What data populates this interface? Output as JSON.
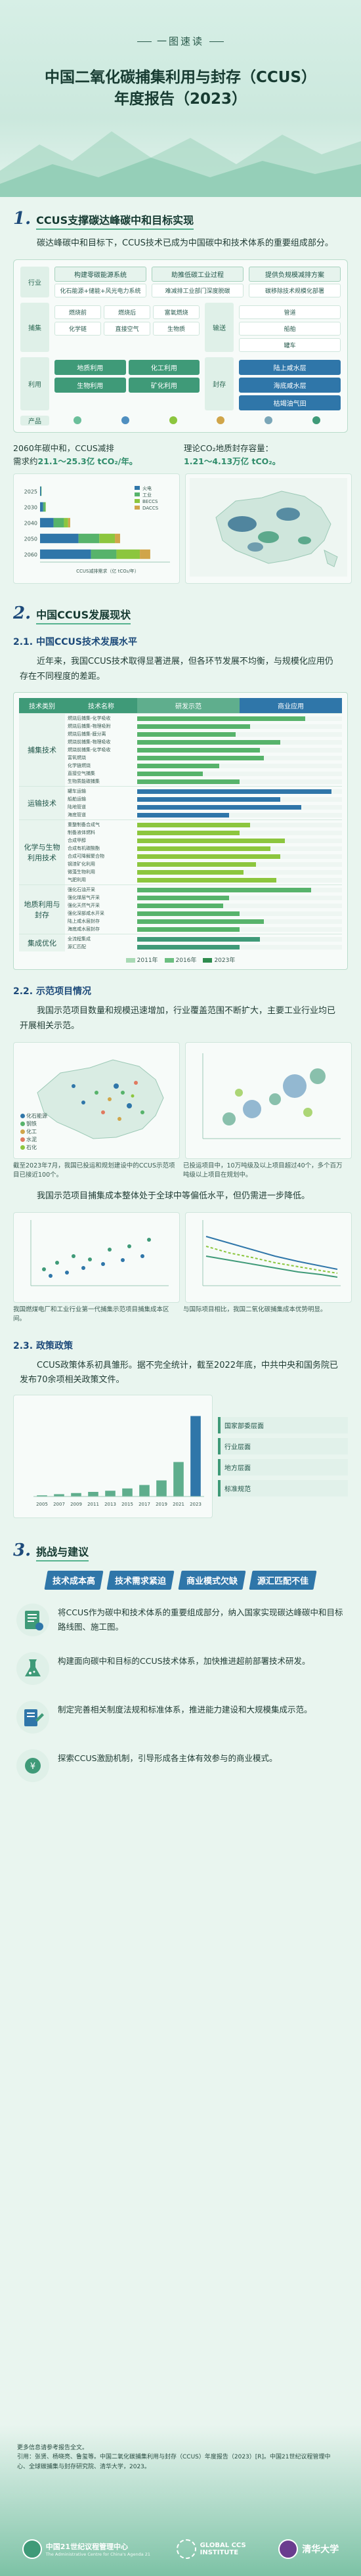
{
  "header": {
    "tag": "一图速读",
    "title_line1": "中国二氧化碳捕集利用与封存（CCUS）",
    "title_line2": "年度报告（2023）"
  },
  "section1": {
    "num": "1.",
    "title": "CCUS支撑碳达峰碳中和目标实现",
    "intro": "碳达峰碳中和目标下，CCUS技术已成为中国碳中和技术体系的重要组成部分。",
    "chain": {
      "top_labels": [
        "构建零碳能源系统",
        "助推低碳工业过程",
        "提供负规模减排方案"
      ],
      "top_sub": [
        "化石能源+储能+风光电力系统",
        "难减排工业部门深度脱碳",
        "碳移除技术规模化部署"
      ],
      "stage_labels": [
        "捕集",
        "输送",
        "利用",
        "封存"
      ],
      "capture_items": [
        "燃烧前",
        "燃烧后",
        "富氧燃烧",
        "化学链",
        "直接空气",
        "生物质"
      ],
      "transport_items": [
        "管道",
        "船舶",
        "罐车"
      ],
      "utilize_items": [
        "地质利用",
        "化工利用",
        "生物利用",
        "矿化利用"
      ],
      "storage_items": [
        "陆上咸水层",
        "海底咸水层",
        "枯竭油气田"
      ],
      "product_label": "产品",
      "row_label_sector": "行业"
    },
    "stat_left": {
      "text_a": "2060年碳中和，CCUS减排",
      "text_b": "需求约",
      "value": "21.1～25.3亿 tCO₂/年。"
    },
    "stat_right": {
      "text_a": "理论CO₂地质封存容量：",
      "value": "1.21～4.13万亿 tCO₂。"
    }
  },
  "chart_data": [
    {
      "type": "bar",
      "title": "",
      "categories": [
        "2025",
        "2030",
        "2040",
        "2050",
        "2060"
      ],
      "series": [
        {
          "name": "火电",
          "values": [
            0.19,
            0.6,
            2.6,
            7.4,
            9.8
          ]
        },
        {
          "name": "工业",
          "values": [
            0.09,
            0.4,
            2.0,
            4.0,
            4.9
          ]
        },
        {
          "name": "BECCS",
          "values": [
            0.01,
            0.1,
            0.8,
            3.0,
            4.5
          ]
        },
        {
          "name": "DACCS",
          "values": [
            0.0,
            0.0,
            0.4,
            1.0,
            2.0
          ]
        }
      ],
      "ylabel": "年份",
      "xlabel": "CCUS减排需求（亿 tCO₂/年）",
      "xlim": [
        0,
        25
      ]
    },
    {
      "type": "bar",
      "title": "",
      "categories": [
        "2005",
        "2007",
        "2009",
        "2011",
        "2013",
        "2015",
        "2017",
        "2019",
        "2021",
        "2023"
      ],
      "values": [
        1,
        2,
        3,
        4,
        5,
        7,
        10,
        14,
        30,
        70
      ],
      "ylabel": "政策数量",
      "ylim": [
        0,
        80
      ]
    }
  ],
  "section2": {
    "num": "2.",
    "title": "中国CCUS发展现状",
    "sub1_num": "2.1.",
    "sub1_title": "中国CCUS技术发展水平",
    "sub1_text": "近年来，我国CCUS技术取得显著进展，但各环节发展不均衡，与规模化应用仍存在不同程度的差距。",
    "tech_header": [
      "技术类别",
      "技术名称",
      "研发示范",
      "商业应用"
    ],
    "tech_groups": [
      {
        "cat": "捕集技术",
        "rows": [
          {
            "name": "燃烧后捕集-化学吸收",
            "level": 0.82,
            "color": "#57b36b"
          },
          {
            "name": "燃烧后捕集-物理吸附",
            "level": 0.55,
            "color": "#57b36b"
          },
          {
            "name": "燃烧后捕集-膜分离",
            "level": 0.48,
            "color": "#57b36b"
          },
          {
            "name": "燃烧前捕集-物理吸收",
            "level": 0.7,
            "color": "#57b36b"
          },
          {
            "name": "燃烧前捕集-化学吸收",
            "level": 0.6,
            "color": "#57b36b"
          },
          {
            "name": "富氧燃烧",
            "level": 0.62,
            "color": "#57b36b"
          },
          {
            "name": "化学链燃烧",
            "level": 0.4,
            "color": "#57b36b"
          },
          {
            "name": "直接空气捕集",
            "level": 0.32,
            "color": "#57b36b"
          },
          {
            "name": "生物质能碳捕集",
            "level": 0.5,
            "color": "#57b36b"
          }
        ]
      },
      {
        "cat": "运输技术",
        "rows": [
          {
            "name": "罐车运输",
            "level": 0.95,
            "color": "#2f76a9"
          },
          {
            "name": "船舶运输",
            "level": 0.7,
            "color": "#2f76a9"
          },
          {
            "name": "陆地管道",
            "level": 0.8,
            "color": "#2f76a9"
          },
          {
            "name": "海底管道",
            "level": 0.45,
            "color": "#2f76a9"
          }
        ]
      },
      {
        "cat": "化学与生物利用技术",
        "rows": [
          {
            "name": "重整制备合成气",
            "level": 0.55,
            "color": "#8cc63e"
          },
          {
            "name": "制备液体燃料",
            "level": 0.5,
            "color": "#8cc63e"
          },
          {
            "name": "合成甲醇",
            "level": 0.72,
            "color": "#8cc63e"
          },
          {
            "name": "合成有机碳酸酯",
            "level": 0.65,
            "color": "#8cc63e"
          },
          {
            "name": "合成可降解聚合物",
            "level": 0.7,
            "color": "#8cc63e"
          },
          {
            "name": "钢渣矿化利用",
            "level": 0.58,
            "color": "#8cc63e"
          },
          {
            "name": "微藻生物利用",
            "level": 0.52,
            "color": "#8cc63e"
          },
          {
            "name": "气肥利用",
            "level": 0.68,
            "color": "#8cc63e"
          }
        ]
      },
      {
        "cat": "地质利用与封存",
        "rows": [
          {
            "name": "强化石油开采",
            "level": 0.85,
            "color": "#57b36b"
          },
          {
            "name": "强化煤层气开采",
            "level": 0.45,
            "color": "#57b36b"
          },
          {
            "name": "强化天然气开采",
            "level": 0.42,
            "color": "#57b36b"
          },
          {
            "name": "强化深部咸水开采",
            "level": 0.5,
            "color": "#57b36b"
          },
          {
            "name": "陆上咸水层封存",
            "level": 0.62,
            "color": "#57b36b"
          },
          {
            "name": "海底咸水层封存",
            "level": 0.5,
            "color": "#57b36b"
          }
        ]
      },
      {
        "cat": "集成优化",
        "rows": [
          {
            "name": "全流程集成",
            "level": 0.6,
            "color": "#3f9a78"
          },
          {
            "name": "源汇匹配",
            "level": 0.5,
            "color": "#3f9a78"
          }
        ]
      }
    ],
    "tech_legend": [
      "2011年",
      "2016年",
      "2023年"
    ],
    "sub2_num": "2.2.",
    "sub2_title": "示范项目情况",
    "sub2_text": "我国示范项目数量和规模迅速增加，行业覆盖范围不断扩大，主要工业行业均已开展相关示范。",
    "map_legend": [
      "化石能源",
      "钢铁",
      "化工",
      "水泥",
      "石化"
    ],
    "map_caption_left": "截至2023年7月，我国已投运和规划建设中的CCUS示范项目已接近100个。",
    "map_caption_right": "已投运项目中，10万吨级及以上项目超过40个，多个百万吨级以上项目在规划中。",
    "cost_text": "我国示范项目捕集成本整体处于全球中等偏低水平，但仍需进一步降低。",
    "cost_caption_left": "我国燃煤电厂和工业行业第一代捕集示范项目捕集成本区间。",
    "cost_caption_right": "与国际项目相比，我国二氧化碳捕集成本优势明显。",
    "sub3_num": "2.3.",
    "sub3_title": "政策政策",
    "sub3_text": "CCUS政策体系初具雏形。据不完全统计，截至2022年底，中共中央和国务院已发布70余项相关政策文件。",
    "policy_items": [
      "国家部委层面",
      "行业层面",
      "地方层面",
      "标准规范"
    ]
  },
  "section3": {
    "num": "3.",
    "title": "挑战与建议",
    "tags": [
      "技术成本高",
      "技术需求紧迫",
      "商业模式欠缺",
      "源汇匹配不佳"
    ],
    "recs": [
      "将CCUS作为碳中和技术体系的重要组成部分，纳入国家实现碳达峰碳中和目标路线图、施工图。",
      "构建面向碳中和目标的CCUS技术体系，加快推进超前部署技术研发。",
      "制定完善相关制度法规和标准体系，推进能力建设和大规模集成示范。",
      "探索CCUS激励机制，引导形成各主体有效参与的商业模式。"
    ]
  },
  "footer": {
    "source": "更多信息请参考报告全文。\n引用：张贤、杨晓亮、鲁玺等。中国二氧化碳捕集利用与封存（CCUS）年度报告（2023）[R]。中国21世纪议程管理中心、全球碳捕集与封存研究院、清华大学，2023。",
    "logo1_cn": "中国21世纪议程管理中心",
    "logo1_en": "The Administrative Centre for China's Agenda 21",
    "logo2": "GLOBAL CCS INSTITUTE",
    "logo3": "清华大学"
  }
}
